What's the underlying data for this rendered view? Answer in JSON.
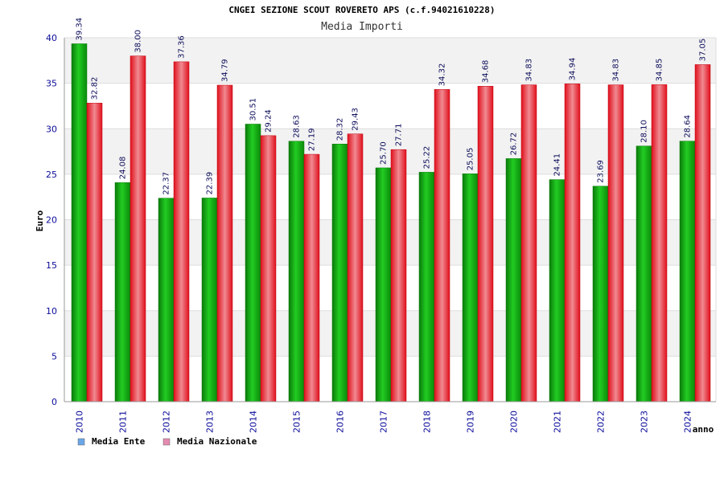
{
  "header": {
    "title": "CNGEI SEZIONE SCOUT ROVERETO APS (c.f.94021610228)",
    "subtitle": "Media Importi"
  },
  "chart_data": {
    "type": "bar",
    "title": "CNGEI SEZIONE SCOUT ROVERETO APS (c.f.94021610228)",
    "subtitle": "Media Importi",
    "xlabel": "anno",
    "ylabel": "Euro",
    "ylim": [
      0,
      40
    ],
    "yticks": [
      0,
      5,
      10,
      15,
      20,
      25,
      30,
      35,
      40
    ],
    "grid": true,
    "legend_position": "bottom-left",
    "categories": [
      "2010",
      "2011",
      "2012",
      "2013",
      "2014",
      "2015",
      "2016",
      "2017",
      "2018",
      "2019",
      "2020",
      "2021",
      "2022",
      "2023",
      "2024"
    ],
    "series": [
      {
        "name": "Media Ente",
        "color": "#10b010",
        "legend_color": "#6aa6e8",
        "values": [
          39.34,
          24.08,
          22.37,
          22.39,
          30.51,
          28.63,
          28.32,
          25.7,
          25.22,
          25.05,
          26.72,
          24.41,
          23.69,
          28.1,
          28.64
        ],
        "labels": [
          "39.34",
          "24.08",
          "22.37",
          "22.39",
          "30.51",
          "28.63",
          "28.32",
          "25.70",
          "25.22",
          "25.05",
          "26.72",
          "24.41",
          "23.69",
          "28.10",
          "28.64"
        ]
      },
      {
        "name": "Media Nazionale",
        "color": "#e8202c",
        "legend_color": "#e58ab0",
        "values": [
          32.82,
          38.0,
          37.36,
          34.79,
          29.24,
          27.19,
          29.43,
          27.71,
          34.32,
          34.68,
          34.83,
          34.94,
          34.83,
          34.85,
          37.05
        ],
        "labels": [
          "32.82",
          "38.00",
          "37.36",
          "34.79",
          "29.24",
          "27.19",
          "29.43",
          "27.71",
          "34.32",
          "34.68",
          "34.83",
          "34.94",
          "34.83",
          "34.85",
          "37.05"
        ]
      }
    ]
  }
}
